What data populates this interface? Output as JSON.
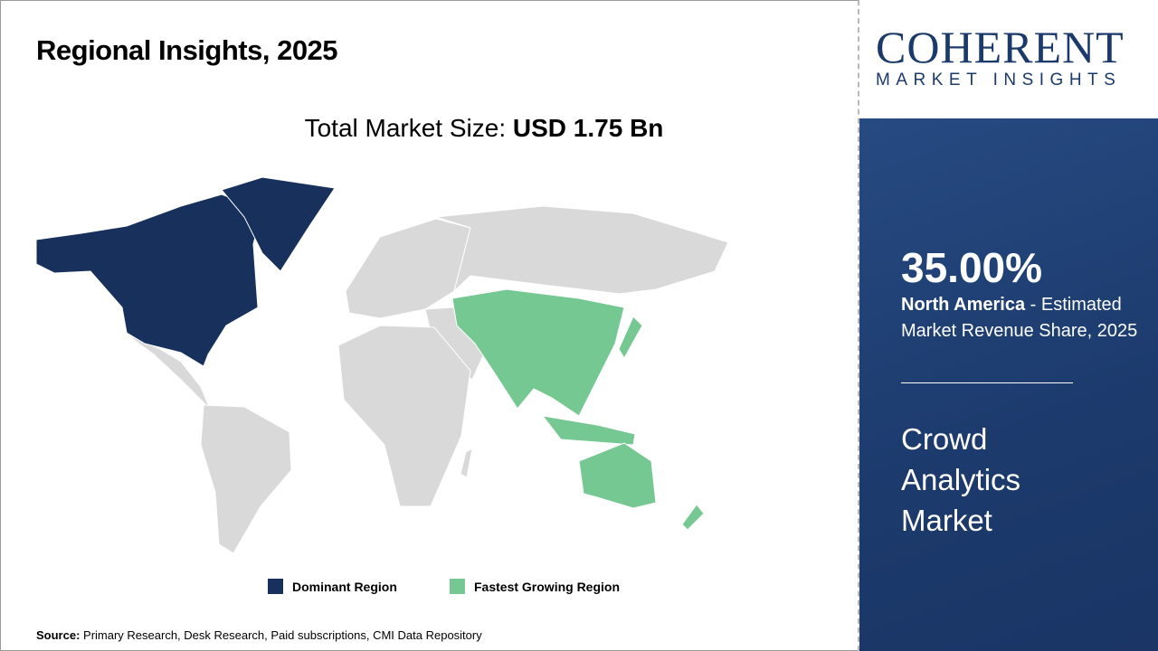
{
  "header": {
    "title": "Regional Insights, 2025"
  },
  "total": {
    "label": "Total Market Size: ",
    "value": "USD 1.75 Bn"
  },
  "legend": [
    {
      "label": "Dominant Region",
      "color": "#17305c"
    },
    {
      "label": "Fastest Growing Region",
      "color": "#76c893"
    }
  ],
  "map": {
    "dominant": "North America",
    "fastest_growing": "Asia Pacific",
    "other_color": "#d9d9d9"
  },
  "source": {
    "label": "Source:",
    "text": " Primary Research, Desk Research, Paid subscriptions, CMI Data Repository"
  },
  "logo": {
    "main": "COHERENT",
    "sub": "MARKET INSIGHTS"
  },
  "panel": {
    "share": "35.00%",
    "region": "North America",
    "desc": " - Estimated Market Revenue Share, 2025",
    "market": "Crowd Analytics Market",
    "bg_color": "#1e3c6e"
  }
}
